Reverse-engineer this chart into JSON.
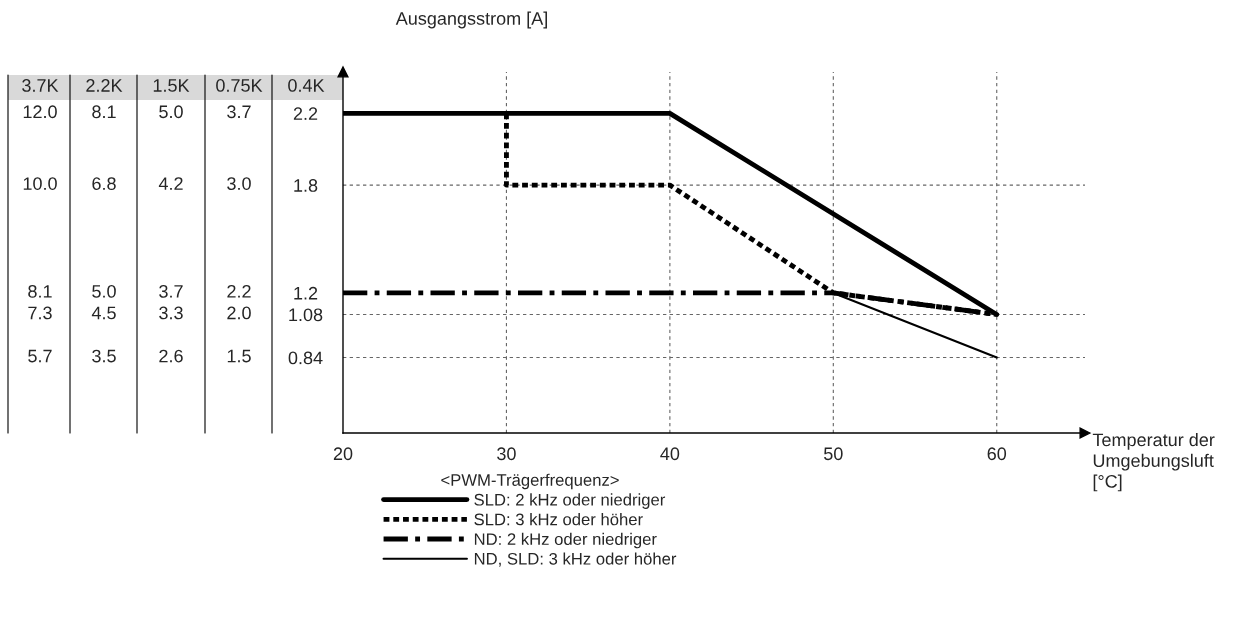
{
  "chart_data": {
    "type": "line",
    "xlabel": "Temperatur der\nUmgebungsluft\n[°C]",
    "ylabel": "Ausgangsstrom [A]",
    "legend_title": "<PWM-Trägerfrequenz>",
    "xlim": [
      20,
      65.4
    ],
    "xticks": [
      20,
      30,
      40,
      50,
      60
    ],
    "ylim": [
      0.42,
      2.43
    ],
    "yticks": [
      {
        "value": 2.2,
        "label": "2.2"
      },
      {
        "value": 1.8,
        "label": "1.8"
      },
      {
        "value": 1.2,
        "label": "1.2"
      },
      {
        "value": 1.08,
        "label": "1.08"
      },
      {
        "value": 0.84,
        "label": "0.84"
      }
    ],
    "grid": false,
    "legend": "bottom",
    "marker": "none",
    "series": [
      {
        "name": "SLD: 2 kHz oder niedriger",
        "color": "#000000",
        "line_style": "solid",
        "x": [
          20,
          40,
          60
        ],
        "values": [
          2.2,
          2.2,
          1.08
        ]
      },
      {
        "name": "SLD: 3 kHz oder höher",
        "color": "#000000",
        "line_style": "dotted",
        "x": [
          30,
          30,
          40,
          50,
          60
        ],
        "values": [
          2.2,
          1.8,
          1.8,
          1.2,
          1.08
        ]
      },
      {
        "name": "ND: 2 kHz oder niedriger",
        "color": "#000000",
        "line_style": "dashdot",
        "x": [
          20,
          50,
          60
        ],
        "values": [
          1.2,
          1.2,
          1.08
        ]
      },
      {
        "name": "ND, SLD: 3 kHz oder höher",
        "color": "#000000",
        "line_style": "solid",
        "x": [
          50,
          60
        ],
        "values": [
          1.2,
          0.84
        ]
      }
    ],
    "ref_lines": [
      {
        "axis": "x",
        "value": 30,
        "line_style": "dashed",
        "color": "#666666"
      },
      {
        "axis": "x",
        "value": 40,
        "line_style": "dashed",
        "color": "#666666"
      },
      {
        "axis": "x",
        "value": 50,
        "line_style": "dashed",
        "color": "#666666"
      },
      {
        "axis": "x",
        "value": 60,
        "line_style": "dashed",
        "color": "#666666"
      },
      {
        "axis": "y",
        "value": 1.8,
        "line_style": "dashed",
        "color": "#666666"
      },
      {
        "axis": "y",
        "value": 1.08,
        "line_style": "dashed",
        "color": "#666666"
      },
      {
        "axis": "y",
        "value": 0.84,
        "line_style": "dashed",
        "color": "#666666"
      }
    ],
    "annotations": [
      "3.7K",
      "2.2K",
      "1.5K",
      "0.75K",
      "0.4K",
      "12.0",
      "8.1",
      "5.0",
      "3.7",
      "10.0",
      "6.8",
      "4.2",
      "3.0",
      "8.1",
      "5.0",
      "3.7",
      "2.2",
      "7.3",
      "4.5",
      "3.3",
      "2.0",
      "5.7",
      "3.5",
      "2.6",
      "1.5"
    ]
  }
}
